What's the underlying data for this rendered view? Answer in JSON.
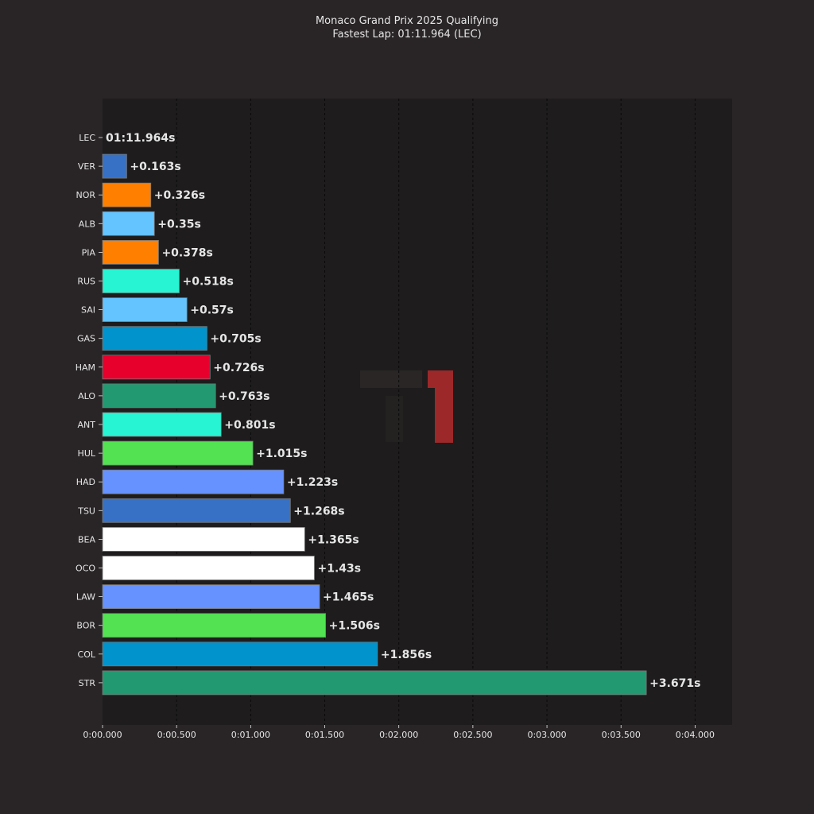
{
  "chart_data": {
    "type": "bar",
    "orientation": "horizontal",
    "title": "Monaco Grand Prix 2025 Qualifying",
    "subtitle": "Fastest Lap: 01:11.964 (LEC)",
    "xlabel": "",
    "ylabel": "",
    "xlim": [
      0,
      4.25
    ],
    "grid": "vertical dashed",
    "legend": "none",
    "x_ticks": [
      0,
      0.5,
      1,
      1.5,
      2,
      2.5,
      3,
      3.5,
      4
    ],
    "x_tick_labels": [
      "0:00.000",
      "0:00.500",
      "0:01.000",
      "0:01.500",
      "0:02.000",
      "0:02.500",
      "0:03.000",
      "0:03.500",
      "0:04.000"
    ],
    "categories": [
      "LEC",
      "VER",
      "NOR",
      "ALB",
      "PIA",
      "RUS",
      "SAI",
      "GAS",
      "HAM",
      "ALO",
      "ANT",
      "HUL",
      "HAD",
      "TSU",
      "BEA",
      "OCO",
      "LAW",
      "BOR",
      "COL",
      "STR"
    ],
    "values": [
      0,
      0.163,
      0.326,
      0.35,
      0.378,
      0.518,
      0.57,
      0.705,
      0.726,
      0.763,
      0.801,
      1.015,
      1.223,
      1.268,
      1.365,
      1.43,
      1.465,
      1.506,
      1.856,
      3.671
    ],
    "value_labels": [
      "01:11.964s",
      "+0.163s",
      "+0.326s",
      "+0.35s",
      "+0.378s",
      "+0.518s",
      "+0.57s",
      "+0.705s",
      "+0.726s",
      "+0.763s",
      "+0.801s",
      "+1.015s",
      "+1.223s",
      "+1.268s",
      "+1.365s",
      "+1.43s",
      "+1.465s",
      "+1.506s",
      "+1.856s",
      "+3.671s"
    ],
    "colors": [
      "#e8002d",
      "#3671c6",
      "#ff8000",
      "#64c4ff",
      "#ff8000",
      "#27f4d2",
      "#64c4ff",
      "#0093cc",
      "#e8002d",
      "#229971",
      "#27f4d2",
      "#52e252",
      "#6692ff",
      "#3671c6",
      "#ffffff",
      "#ffffff",
      "#6692ff",
      "#52e252",
      "#0093cc",
      "#229971"
    ]
  },
  "style": {
    "background": "#292526",
    "plot_background": "#1e1c1c",
    "text_color": "#e6e6e6",
    "grid_color": "#0a0a0a",
    "watermark_color": "#a3292b"
  },
  "watermark": {
    "icon": "f1-logo-icon"
  }
}
